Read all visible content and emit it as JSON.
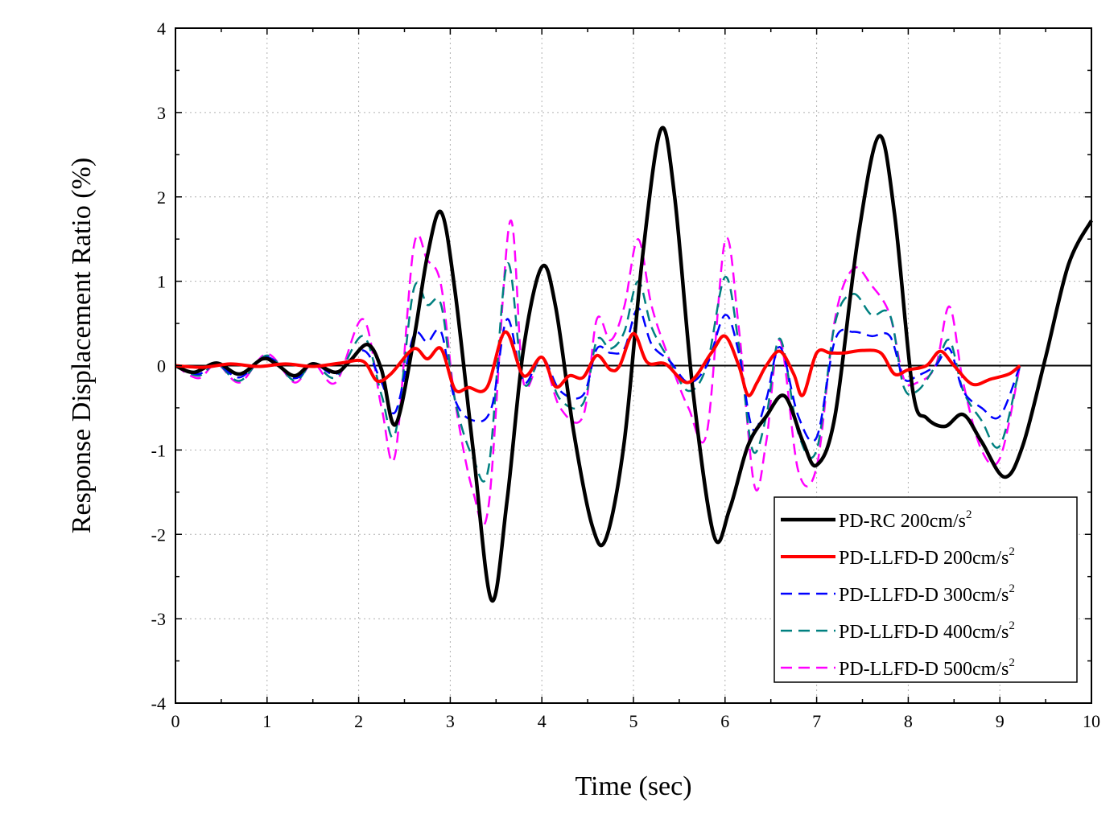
{
  "chart_data": {
    "type": "line",
    "xlabel": "Time (sec)",
    "ylabel": "Response Displacement Ratio (%)",
    "xlim": [
      0,
      10
    ],
    "ylim": [
      -4,
      4
    ],
    "xticks": [
      0,
      1,
      2,
      3,
      4,
      5,
      6,
      7,
      8,
      9,
      10
    ],
    "yticks": [
      -4,
      -3,
      -2,
      -1,
      0,
      1,
      2,
      3,
      4
    ],
    "grid": true,
    "legend_position": "bottom-right",
    "zero_line": true,
    "series": [
      {
        "name": "PD-RC 200cm/s",
        "name_superscript": "2",
        "color": "#000000",
        "style": "solid",
        "width": 4.5,
        "x": [
          0,
          0.2,
          0.45,
          0.7,
          0.95,
          1.1,
          1.3,
          1.5,
          1.75,
          1.9,
          2.1,
          2.25,
          2.4,
          2.6,
          2.75,
          2.9,
          3.05,
          3.25,
          3.45,
          3.62,
          3.8,
          4.0,
          4.15,
          4.35,
          4.55,
          4.7,
          4.9,
          5.1,
          5.3,
          5.45,
          5.65,
          5.88,
          6.05,
          6.25,
          6.45,
          6.65,
          6.85,
          7.0,
          7.2,
          7.45,
          7.68,
          7.85,
          8.05,
          8.2,
          8.4,
          8.6,
          8.8,
          9.05,
          9.25,
          9.5,
          9.75,
          10.0
        ],
        "y": [
          0,
          -0.08,
          0.03,
          -0.1,
          0.08,
          0.02,
          -0.12,
          0.02,
          -0.08,
          0.05,
          0.25,
          -0.05,
          -0.7,
          0.3,
          1.3,
          1.82,
          0.9,
          -1.0,
          -2.78,
          -1.6,
          0.2,
          1.17,
          0.7,
          -0.8,
          -1.9,
          -2.05,
          -0.9,
          1.3,
          2.8,
          2.0,
          -0.3,
          -2.02,
          -1.7,
          -0.95,
          -0.6,
          -0.36,
          -0.9,
          -1.18,
          -0.6,
          1.5,
          2.72,
          1.8,
          -0.3,
          -0.62,
          -0.72,
          -0.58,
          -0.9,
          -1.32,
          -0.95,
          0.1,
          1.2,
          1.72
        ]
      },
      {
        "name": "PD-LLFD-D 200cm/s",
        "name_superscript": "2",
        "color": "#ff0000",
        "style": "solid",
        "width": 4,
        "x": [
          0,
          0.3,
          0.6,
          0.9,
          1.2,
          1.5,
          1.8,
          2.05,
          2.2,
          2.35,
          2.6,
          2.75,
          2.9,
          3.05,
          3.2,
          3.4,
          3.6,
          3.8,
          4.0,
          4.15,
          4.3,
          4.45,
          4.6,
          4.75,
          4.85,
          5.0,
          5.15,
          5.35,
          5.6,
          5.85,
          6.0,
          6.15,
          6.25,
          6.35,
          6.45,
          6.6,
          6.75,
          6.85,
          7.0,
          7.15,
          7.3,
          7.5,
          7.7,
          7.85,
          8.0,
          8.2,
          8.35,
          8.5,
          8.7,
          8.9,
          9.1,
          9.22
        ],
        "y": [
          0,
          -0.02,
          0.02,
          -0.01,
          0.02,
          -0.01,
          0.03,
          0.05,
          -0.18,
          -0.1,
          0.2,
          0.08,
          0.2,
          -0.28,
          -0.26,
          -0.26,
          0.4,
          -0.12,
          0.1,
          -0.25,
          -0.12,
          -0.14,
          0.12,
          -0.05,
          0.0,
          0.38,
          0.04,
          0.02,
          -0.2,
          0.15,
          0.35,
          0.0,
          -0.35,
          -0.2,
          0.0,
          0.17,
          -0.1,
          -0.35,
          0.15,
          0.15,
          0.15,
          0.18,
          0.15,
          -0.1,
          -0.05,
          0.0,
          0.17,
          0.0,
          -0.22,
          -0.16,
          -0.1,
          0.0
        ]
      },
      {
        "name": "PD-LLFD-D 300cm/s",
        "name_superscript": "2",
        "color": "#0000ff",
        "style": "dashed",
        "width": 2.5,
        "x": [
          0,
          0.25,
          0.45,
          0.7,
          1.0,
          1.3,
          1.5,
          1.75,
          2.05,
          2.25,
          2.4,
          2.6,
          2.75,
          2.9,
          3.05,
          3.25,
          3.45,
          3.62,
          3.8,
          4.0,
          4.2,
          4.45,
          4.6,
          4.75,
          4.9,
          5.05,
          5.2,
          5.4,
          5.6,
          5.8,
          6.0,
          6.15,
          6.3,
          6.45,
          6.6,
          6.8,
          7.0,
          7.2,
          7.4,
          7.6,
          7.8,
          7.95,
          8.1,
          8.3,
          8.45,
          8.6,
          8.8,
          9.0,
          9.22
        ],
        "y": [
          0,
          -0.1,
          0.02,
          -0.14,
          0.1,
          -0.15,
          0.03,
          -0.1,
          0.18,
          -0.2,
          -0.55,
          0.35,
          0.28,
          0.4,
          -0.4,
          -0.65,
          -0.5,
          0.55,
          -0.2,
          0.1,
          -0.3,
          -0.35,
          0.2,
          0.15,
          0.2,
          0.68,
          0.25,
          0.05,
          -0.2,
          0.0,
          0.6,
          0.15,
          -0.75,
          -0.4,
          0.22,
          -0.6,
          -0.85,
          0.3,
          0.4,
          0.35,
          0.35,
          -0.15,
          -0.12,
          0.0,
          0.2,
          -0.3,
          -0.5,
          -0.6,
          0.0
        ]
      },
      {
        "name": "PD-LLFD-D 400cm/s",
        "name_superscript": "2",
        "color": "#008080",
        "style": "dashed",
        "width": 2.5,
        "x": [
          0,
          0.25,
          0.45,
          0.7,
          1.0,
          1.3,
          1.5,
          1.75,
          2.05,
          2.25,
          2.4,
          2.6,
          2.75,
          2.9,
          3.05,
          3.25,
          3.42,
          3.62,
          3.8,
          4.0,
          4.2,
          4.45,
          4.6,
          4.75,
          4.9,
          5.05,
          5.2,
          5.4,
          5.6,
          5.8,
          6.0,
          6.15,
          6.3,
          6.45,
          6.6,
          6.8,
          7.0,
          7.2,
          7.4,
          7.6,
          7.8,
          7.95,
          8.1,
          8.3,
          8.45,
          8.6,
          8.8,
          9.0,
          9.22
        ],
        "y": [
          0,
          -0.12,
          0.02,
          -0.18,
          0.12,
          -0.18,
          0.03,
          -0.14,
          0.35,
          -0.35,
          -0.8,
          0.9,
          0.72,
          0.72,
          -0.4,
          -1.1,
          -1.2,
          1.2,
          -0.2,
          0.1,
          -0.4,
          -0.45,
          0.3,
          0.2,
          0.4,
          1.0,
          0.45,
          0.05,
          -0.3,
          0.0,
          1.05,
          0.25,
          -1.0,
          -0.6,
          0.32,
          -0.8,
          -1.0,
          0.5,
          0.85,
          0.6,
          0.6,
          -0.25,
          -0.3,
          0.0,
          0.3,
          -0.3,
          -0.65,
          -0.95,
          0.0
        ]
      },
      {
        "name": "PD-LLFD-D 500cm/s",
        "name_superscript": "2",
        "color": "#ff00ff",
        "style": "dashed",
        "width": 2.5,
        "x": [
          0,
          0.25,
          0.45,
          0.7,
          1.0,
          1.3,
          1.5,
          1.75,
          2.05,
          2.25,
          2.4,
          2.6,
          2.75,
          2.9,
          3.05,
          3.25,
          3.42,
          3.65,
          3.8,
          4.0,
          4.2,
          4.45,
          4.6,
          4.75,
          4.9,
          5.05,
          5.2,
          5.4,
          5.6,
          5.8,
          6.0,
          6.15,
          6.32,
          6.45,
          6.6,
          6.8,
          7.0,
          7.2,
          7.4,
          7.6,
          7.8,
          7.95,
          8.1,
          8.3,
          8.45,
          8.6,
          8.8,
          9.0,
          9.22
        ],
        "y": [
          0,
          -0.15,
          0.02,
          -0.2,
          0.14,
          -0.2,
          0.03,
          -0.2,
          0.55,
          -0.5,
          -1.05,
          1.4,
          1.25,
          0.95,
          -0.4,
          -1.5,
          -1.65,
          1.7,
          -0.2,
          0.1,
          -0.5,
          -0.6,
          0.55,
          0.3,
          0.7,
          1.5,
          0.7,
          0.05,
          -0.5,
          -0.8,
          1.48,
          0.45,
          -1.42,
          -0.9,
          0.3,
          -1.25,
          -1.2,
          0.55,
          1.15,
          0.95,
          0.6,
          -0.15,
          -0.2,
          0.0,
          0.7,
          -0.2,
          -1.0,
          -1.1,
          0.0
        ]
      }
    ]
  }
}
